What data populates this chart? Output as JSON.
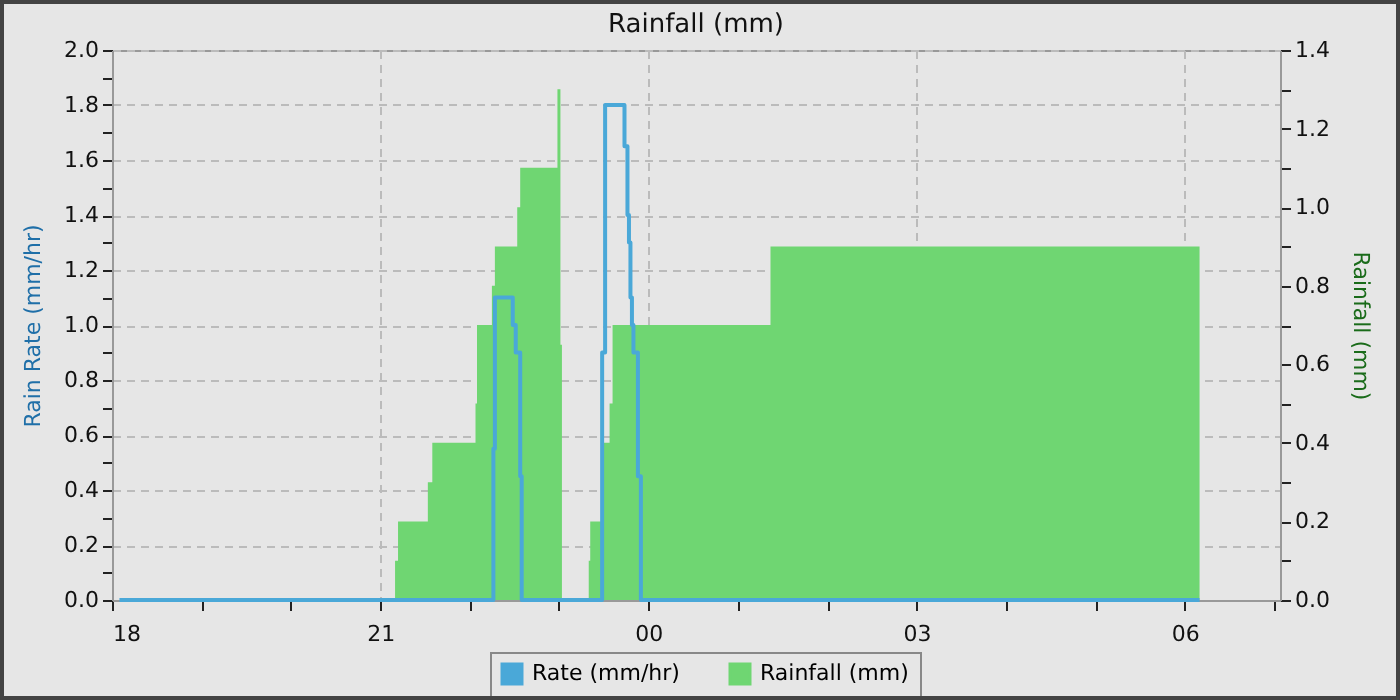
{
  "chart_data": {
    "type": "step",
    "title": "Rainfall (mm)",
    "ylabel": "Rain Rate (mm/hr)",
    "y2label": "Rainfall (mm)",
    "xlim": [
      "--01-01T18:00",
      "--01-02T07:04"
    ],
    "xticks": [
      {
        "value": "--01-01T18:00",
        "label": "18"
      },
      {
        "value": "--01-01T19:00",
        "label": null
      },
      {
        "value": "--01-01T20:00",
        "label": null
      },
      {
        "value": "--01-01T21:00",
        "label": "21"
      },
      {
        "value": "--01-01T22:00",
        "label": null
      },
      {
        "value": "--01-01T23:00",
        "label": null
      },
      {
        "value": "--01-02T00:00",
        "label": "00"
      },
      {
        "value": "--01-02T01:00",
        "label": null
      },
      {
        "value": "--01-02T02:00",
        "label": null
      },
      {
        "value": "--01-02T03:00",
        "label": "03"
      },
      {
        "value": "--01-02T04:00",
        "label": null
      },
      {
        "value": "--01-02T05:00",
        "label": null
      },
      {
        "value": "--01-02T06:00",
        "label": "06"
      },
      {
        "value": "--01-02T07:00",
        "label": null
      }
    ],
    "ylim": [
      0,
      2
    ],
    "yticks": [
      {
        "value": 0,
        "label": "0.0"
      },
      {
        "value": 0.1,
        "label": null
      },
      {
        "value": 0.2,
        "label": "0.2"
      },
      {
        "value": 0.3,
        "label": null
      },
      {
        "value": 0.4,
        "label": "0.4"
      },
      {
        "value": 0.5,
        "label": null
      },
      {
        "value": 0.6,
        "label": "0.6"
      },
      {
        "value": 0.7,
        "label": null
      },
      {
        "value": 0.8,
        "label": "0.8"
      },
      {
        "value": 0.9,
        "label": null
      },
      {
        "value": 1,
        "label": "1.0"
      },
      {
        "value": 1.1,
        "label": null
      },
      {
        "value": 1.2,
        "label": "1.2"
      },
      {
        "value": 1.3,
        "label": null
      },
      {
        "value": 1.4,
        "label": "1.4"
      },
      {
        "value": 1.5,
        "label": null
      },
      {
        "value": 1.6,
        "label": "1.6"
      },
      {
        "value": 1.7,
        "label": null
      },
      {
        "value": 1.8,
        "label": "1.8"
      },
      {
        "value": 1.9,
        "label": null
      },
      {
        "value": 2,
        "label": "2.0"
      }
    ],
    "y2lim": [
      0,
      1.4
    ],
    "y2ticks": [
      {
        "value": 0,
        "label": "0.0"
      },
      {
        "value": 0.1,
        "label": null
      },
      {
        "value": 0.2,
        "label": "0.2"
      },
      {
        "value": 0.3,
        "label": null
      },
      {
        "value": 0.4,
        "label": "0.4"
      },
      {
        "value": 0.5,
        "label": null
      },
      {
        "value": 0.6,
        "label": "0.6"
      },
      {
        "value": 0.7,
        "label": null
      },
      {
        "value": 0.8,
        "label": "0.8"
      },
      {
        "value": 0.9,
        "label": null
      },
      {
        "value": 1,
        "label": "1.0"
      },
      {
        "value": 1.1,
        "label": null
      },
      {
        "value": 1.2,
        "label": "1.2"
      },
      {
        "value": 1.3,
        "label": null
      },
      {
        "value": 1.4,
        "label": "1.4"
      }
    ],
    "grid": true,
    "legend": "bottom",
    "series": [
      {
        "name": "Rate (mm/hr)",
        "color": "#4aa8d8",
        "x": [
          "--01-01T18:05",
          "--01-01T22:16",
          "--01-01T22:17",
          "--01-01T22:29",
          "--01-01T22:31",
          "--01-01T22:34",
          "--01-01T22:35",
          "--01-01T23:29",
          "--01-01T23:31",
          "--01-01T23:44",
          "--01-01T23:46",
          "--01-01T23:47",
          "--01-01T23:48",
          "--01-01T23:49",
          "--01-01T23:50",
          "--01-01T23:53",
          "--01-01T23:55",
          "--01-02T06:10"
        ],
        "values": [
          0,
          0.55,
          1.1,
          1.0,
          0.9,
          0.45,
          0,
          0.9,
          1.8,
          1.65,
          1.4,
          1.3,
          1.1,
          1.0,
          0.9,
          0.45,
          0,
          0
        ]
      },
      {
        "name": "Rainfall (mm)",
        "type": "area",
        "axis": "y2",
        "color": "#6fd672",
        "x": [
          "--01-01T18:05",
          "--01-01T21:10",
          "--01-01T21:12",
          "--01-01T21:32",
          "--01-01T21:35",
          "--01-01T22:04",
          "--01-01T22:05",
          "--01-01T22:15",
          "--01-01T22:17",
          "--01-01T22:32",
          "--01-01T22:34",
          "--01-01T22:59",
          "--01-01T23:01",
          "--01-01T23:02",
          "--01-01T23:20",
          "--01-01T23:21",
          "--01-01T23:29",
          "--01-01T23:34",
          "--01-01T23:36",
          "--01-02T01:22",
          "--01-02T06:10"
        ],
        "values": [
          0,
          0.1,
          0.2,
          0.3,
          0.4,
          0.5,
          0.7,
          0.8,
          0.9,
          1.0,
          1.1,
          1.3,
          0.65,
          0,
          0.1,
          0.2,
          0.4,
          0.5,
          0.7,
          0.9,
          0.9
        ]
      }
    ]
  }
}
